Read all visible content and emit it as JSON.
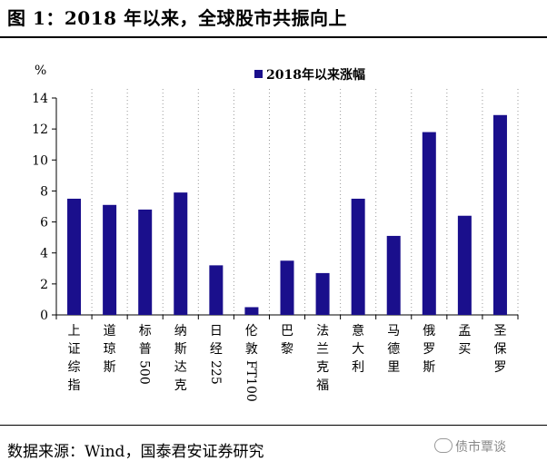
{
  "figure": {
    "title": "图 1：2018 年以来，全球股市共振向上",
    "source": "数据来源：Wind，国泰君安证券研究",
    "watermark": "债市覃谈"
  },
  "chart_data": {
    "type": "bar",
    "ylabel": "%",
    "ylim": [
      0,
      14
    ],
    "yticks": [
      0,
      2,
      4,
      6,
      8,
      10,
      12,
      14
    ],
    "grid": "vertical dotted",
    "legend_placement": "top-center",
    "series": [
      {
        "name": "2018年以来涨幅",
        "color": "#1a0f8c",
        "values": [
          7.5,
          7.1,
          6.8,
          7.9,
          3.2,
          0.5,
          3.5,
          2.7,
          7.5,
          5.1,
          11.8,
          6.4,
          12.9
        ]
      }
    ],
    "categories": [
      "上证综指",
      "道琼斯",
      "标普500",
      "纳斯达克",
      "日经225",
      "伦敦FT100",
      "巴黎",
      "法兰克福",
      "意大利",
      "马德里",
      "俄罗斯",
      "孟买",
      "圣保罗"
    ]
  }
}
